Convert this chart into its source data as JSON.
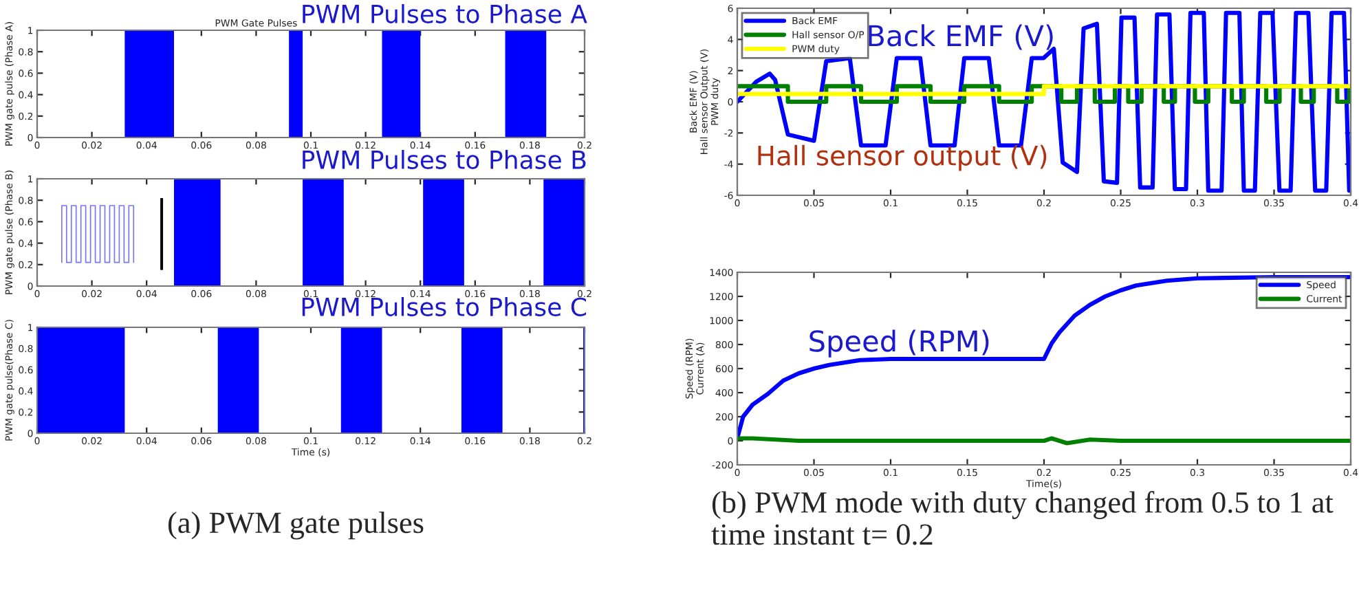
{
  "chart_data": [
    {
      "type": "area",
      "title": "PWM Gate Pulses",
      "ylabel": "PWM gate pulse (Phase A)",
      "annotations": [
        "PWM Pulses to Phase A"
      ],
      "series": [
        {
          "color": "#0000ff",
          "x": [
            0,
            0.032,
            0.032,
            0.05,
            0.05,
            0.092,
            0.092,
            0.097,
            0.097,
            0.126,
            0.126,
            0.14,
            0.14,
            0.171,
            0.171,
            0.186,
            0.186,
            0.2
          ],
          "values": [
            0,
            0,
            1,
            1,
            0,
            0,
            1,
            1,
            0,
            0,
            1,
            1,
            0,
            0,
            1,
            1,
            0,
            0
          ]
        }
      ],
      "xlim": [
        0,
        0.2
      ],
      "xticks": [
        0,
        0.02,
        0.04,
        0.06,
        0.08,
        0.1,
        0.12,
        0.14,
        0.16,
        0.18,
        0.2
      ],
      "ylim": [
        0,
        1
      ],
      "yticks": [
        0,
        0.2,
        0.4,
        0.6,
        0.8,
        1
      ]
    },
    {
      "type": "area",
      "ylabel": "PWM gate pulse (Phase B)",
      "annotations": [
        "PWM Pulses to Phase B"
      ],
      "series": [
        {
          "color": "#0000ff",
          "x": [
            0,
            0.05,
            0.05,
            0.067,
            0.067,
            0.097,
            0.097,
            0.112,
            0.112,
            0.141,
            0.141,
            0.156,
            0.156,
            0.185,
            0.185,
            0.2
          ],
          "values": [
            0,
            0,
            1,
            1,
            0,
            0,
            1,
            1,
            0,
            0,
            1,
            1,
            0,
            0,
            1,
            1
          ]
        }
      ],
      "xlim": [
        0,
        0.2
      ],
      "xticks": [
        0,
        0.02,
        0.04,
        0.06,
        0.08,
        0.1,
        0.12,
        0.14,
        0.16,
        0.18,
        0.2
      ],
      "ylim": [
        0,
        1
      ],
      "yticks": [
        0,
        0.2,
        0.4,
        0.6,
        0.8,
        1
      ]
    },
    {
      "type": "area",
      "xlabel": "Time (s)",
      "ylabel": "PWM gate pulse(Phase C)",
      "annotations": [
        "PWM Pulses to Phase C",
        "(a) PWM gate pulses"
      ],
      "series": [
        {
          "color": "#0000ff",
          "x": [
            0,
            0.032,
            0.032,
            0.066,
            0.066,
            0.081,
            0.081,
            0.111,
            0.111,
            0.126,
            0.126,
            0.155,
            0.155,
            0.17,
            0.17,
            0.1995,
            0.1995,
            0.2
          ],
          "values": [
            1,
            1,
            0,
            0,
            1,
            1,
            0,
            0,
            1,
            1,
            0,
            0,
            1,
            1,
            0,
            0,
            1,
            1
          ]
        }
      ],
      "xlim": [
        0,
        0.2
      ],
      "xticks": [
        0,
        0.02,
        0.04,
        0.06,
        0.08,
        0.1,
        0.12,
        0.14,
        0.16,
        0.18,
        0.2
      ],
      "ylim": [
        0,
        1
      ],
      "yticks": [
        0,
        0.2,
        0.4,
        0.6,
        0.8,
        1
      ]
    },
    {
      "type": "line",
      "ylabel": "Back EMF (V)\nHall sensor Output (V)\nPWM duty",
      "legend": "top left",
      "annotations": [
        "Back EMF (V)",
        "Hall sensor output (V)"
      ],
      "series": [
        {
          "name": "Back EMF",
          "color": "#0000ff",
          "x": [
            0,
            0.0125,
            0.0212,
            0.0247,
            0.033,
            0.05,
            0.058,
            0.0734,
            0.0807,
            0.0967,
            0.104,
            0.1193,
            0.126,
            0.1417,
            0.148,
            0.164,
            0.1707,
            0.185,
            0.192,
            0.1997,
            0.2064,
            0.2122,
            0.2215,
            0.2258,
            0.2345,
            0.239,
            0.2476,
            0.2505,
            0.259,
            0.2627,
            0.2708,
            0.2737,
            0.2818,
            0.2853,
            0.2926,
            0.2955,
            0.3042,
            0.3071,
            0.3158,
            0.3187,
            0.3274,
            0.3303,
            0.3375,
            0.341,
            0.349,
            0.3535,
            0.3608,
            0.3643,
            0.3724,
            0.3768,
            0.384,
            0.3875,
            0.3956,
            0.399,
            0.4
          ],
          "values": [
            0,
            1.3,
            1.8,
            1.4,
            -2.1,
            -2.5,
            2.6,
            2.8,
            -2.8,
            -2.8,
            2.8,
            2.8,
            -2.8,
            -2.8,
            2.8,
            2.8,
            -2.8,
            -2.8,
            2.8,
            2.8,
            3.4,
            -3.9,
            -4.5,
            4.7,
            5.0,
            -5.1,
            -5.2,
            5.4,
            5.4,
            -5.5,
            -5.5,
            5.6,
            5.6,
            -5.6,
            -5.6,
            5.7,
            5.7,
            -5.7,
            -5.7,
            5.7,
            5.7,
            -5.7,
            -5.7,
            5.7,
            5.7,
            -5.7,
            -5.7,
            5.7,
            5.7,
            -5.7,
            -5.7,
            5.7,
            5.7,
            -5.7,
            -5.7
          ]
        },
        {
          "name": "Hall sensor O/P",
          "type": "step",
          "color": "#008000",
          "x": [
            0,
            0.033,
            0.058,
            0.0807,
            0.104,
            0.126,
            0.148,
            0.1707,
            0.192,
            0.2113,
            0.2215,
            0.2331,
            0.2462,
            0.2549,
            0.2636,
            0.2781,
            0.2854,
            0.2984,
            0.3071,
            0.3225,
            0.3303,
            0.3449,
            0.3536,
            0.3675,
            0.3759,
            0.3912,
            0.3991,
            0.4
          ],
          "values": [
            1,
            0,
            1,
            0,
            1,
            0,
            1,
            0,
            1,
            0,
            1,
            0,
            1,
            0,
            1,
            0,
            1,
            0,
            1,
            0,
            1,
            0,
            1,
            0,
            1,
            0,
            1,
            1
          ]
        },
        {
          "name": "PWM duty",
          "type": "step",
          "color": "#ffff00",
          "x": [
            0,
            0.2,
            0.4
          ],
          "values": [
            0.5,
            1,
            1
          ]
        }
      ],
      "xlim": [
        0,
        0.4
      ],
      "xticks": [
        0,
        0.05,
        0.1,
        0.15,
        0.2,
        0.25,
        0.3,
        0.35,
        0.4
      ],
      "ylim": [
        -6,
        6
      ],
      "yticks": [
        -6,
        -4,
        -2,
        0,
        2,
        4,
        6
      ]
    },
    {
      "type": "line",
      "xlabel": "Time(s)",
      "ylabel": "Speed (RPM)\nCurrent (A)",
      "legend": "top right",
      "annotations": [
        "Speed (RPM)",
        "(b) PWM mode with duty changed from 0.5 to 1 at time instant t= 0.2"
      ],
      "series": [
        {
          "name": "Speed",
          "color": "#0000ff",
          "x": [
            0,
            0.0038,
            0.01,
            0.02,
            0.03,
            0.04,
            0.05,
            0.06,
            0.08,
            0.1,
            0.15,
            0.2,
            0.205,
            0.21,
            0.22,
            0.23,
            0.24,
            0.25,
            0.26,
            0.28,
            0.3,
            0.35,
            0.4
          ],
          "values": [
            20,
            200,
            300,
            390,
            500,
            560,
            600,
            630,
            670,
            680,
            680,
            680,
            810,
            900,
            1040,
            1130,
            1200,
            1250,
            1290,
            1330,
            1350,
            1360,
            1360
          ]
        },
        {
          "name": "Current",
          "color": "#008000",
          "x": [
            0,
            0.01,
            0.04,
            0.1,
            0.2,
            0.205,
            0.215,
            0.23,
            0.25,
            0.3,
            0.4
          ],
          "values": [
            20,
            20,
            0,
            0,
            0,
            20,
            -20,
            10,
            0,
            0,
            0
          ]
        }
      ],
      "xlim": [
        0,
        0.4
      ],
      "xticks": [
        0,
        0.05,
        0.1,
        0.15,
        0.2,
        0.25,
        0.3,
        0.35,
        0.4
      ],
      "ylim": [
        -200,
        1400
      ],
      "yticks": [
        -200,
        0,
        200,
        400,
        600,
        800,
        1000,
        1200,
        1400
      ]
    }
  ]
}
